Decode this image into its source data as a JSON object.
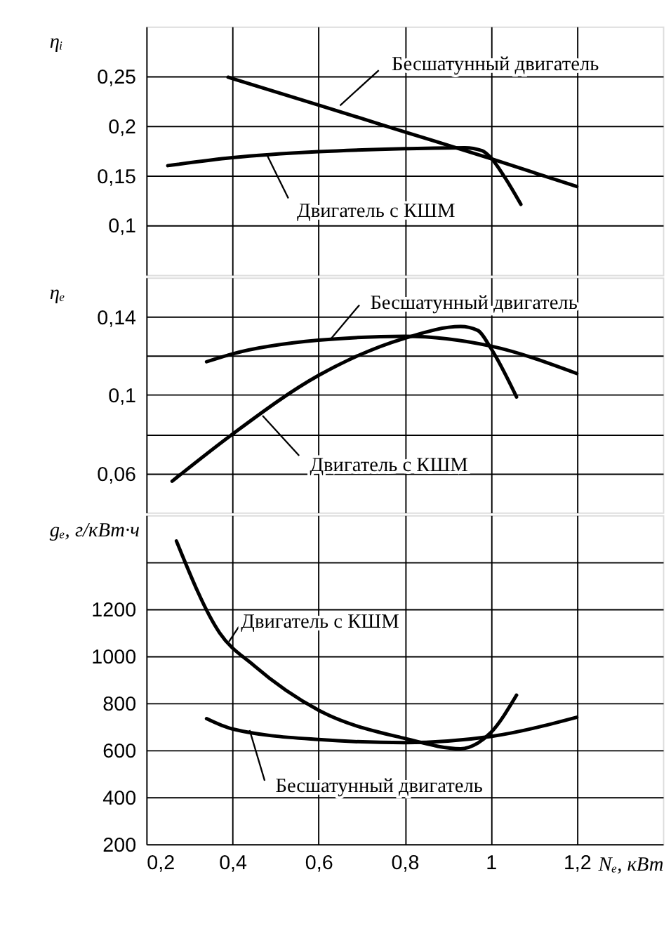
{
  "chart_data": [
    {
      "type": "line",
      "ylabel": "ηᵢ",
      "xlim": [
        0.2,
        1.4
      ],
      "xticks": [
        {
          "value": 0.2,
          "label": null
        },
        {
          "value": 0.4,
          "label": null
        },
        {
          "value": 0.6,
          "label": null
        },
        {
          "value": 0.8,
          "label": null
        },
        {
          "value": 1.0,
          "label": null
        },
        {
          "value": 1.2,
          "label": null
        }
      ],
      "ylim": [
        0.05,
        0.3
      ],
      "yticks": [
        {
          "value": 0.1,
          "label": "0,1"
        },
        {
          "value": 0.15,
          "label": "0,15"
        },
        {
          "value": 0.2,
          "label": "0,2"
        },
        {
          "value": 0.25,
          "label": "0,25"
        }
      ],
      "grid": true,
      "tick_labels": "y",
      "marker": "none",
      "line_style": "solid",
      "series": [
        {
          "name": "Бесшатунный двигатель",
          "color": "#000000",
          "x": [
            0.39,
            0.6,
            0.8,
            1.0,
            1.2
          ],
          "values": [
            0.249,
            0.221,
            0.194,
            0.167,
            0.139
          ]
        },
        {
          "name": "Двигатель с КШМ",
          "color": "#000000",
          "x": [
            0.25,
            0.4,
            0.6,
            0.8,
            0.94,
            0.98,
            1.0,
            1.03,
            1.07
          ],
          "values": [
            0.16,
            0.168,
            0.174,
            0.177,
            0.178,
            0.175,
            0.168,
            0.15,
            0.121
          ]
        }
      ]
    },
    {
      "type": "line",
      "ylabel": "ηₑ",
      "xlim": [
        0.2,
        1.4
      ],
      "xticks": [
        {
          "value": 0.2,
          "label": null
        },
        {
          "value": 0.4,
          "label": null
        },
        {
          "value": 0.6,
          "label": null
        },
        {
          "value": 0.8,
          "label": null
        },
        {
          "value": 1.0,
          "label": null
        },
        {
          "value": 1.2,
          "label": null
        }
      ],
      "ylim": [
        0.04,
        0.16
      ],
      "yticks": [
        {
          "value": 0.06,
          "label": "0,06"
        },
        {
          "value": 0.08,
          "label": null
        },
        {
          "value": 0.1,
          "label": "0,1"
        },
        {
          "value": 0.12,
          "label": null
        },
        {
          "value": 0.14,
          "label": "0,14"
        }
      ],
      "grid": true,
      "tick_labels": "y",
      "marker": "none",
      "line_style": "solid",
      "series": [
        {
          "name": "Бесшатунный двигатель",
          "color": "#000000",
          "x": [
            0.34,
            0.4,
            0.6,
            0.8,
            1.0,
            1.2
          ],
          "values": [
            0.117,
            0.121,
            0.128,
            0.13,
            0.125,
            0.111
          ]
        },
        {
          "name": "Двигатель с КШМ",
          "color": "#000000",
          "x": [
            0.26,
            0.4,
            0.6,
            0.8,
            0.93,
            0.97,
            1.0,
            1.06
          ],
          "values": [
            0.056,
            0.08,
            0.11,
            0.129,
            0.135,
            0.133,
            0.124,
            0.099
          ]
        }
      ]
    },
    {
      "type": "line",
      "ylabel": "gₑ, г/кВт·ч",
      "xlabel": "Nₑ, кВт",
      "xlim": [
        0.2,
        1.4
      ],
      "xticks": [
        {
          "value": 0.2,
          "label": "0,2"
        },
        {
          "value": 0.4,
          "label": "0,4"
        },
        {
          "value": 0.6,
          "label": "0,6"
        },
        {
          "value": 0.8,
          "label": "0,8"
        },
        {
          "value": 1.0,
          "label": "1"
        },
        {
          "value": 1.2,
          "label": "1,2"
        }
      ],
      "ylim": [
        200,
        1600
      ],
      "yticks": [
        200,
        400,
        600,
        800,
        1000,
        1200,
        {
          "value": 1400,
          "label": null
        }
      ],
      "grid": true,
      "marker": "none",
      "line_style": "solid",
      "series": [
        {
          "name": "Двигатель с КШМ",
          "color": "#000000",
          "x": [
            0.27,
            0.37,
            0.45,
            0.6,
            0.8,
            0.93,
            0.97,
            1.0,
            1.06
          ],
          "values": [
            1490,
            1100,
            960,
            770,
            650,
            606,
            630,
            674,
            834
          ]
        },
        {
          "name": "Бесшатунный двигатель",
          "color": "#000000",
          "x": [
            0.34,
            0.4,
            0.6,
            0.8,
            1.0,
            1.2
          ],
          "values": [
            734,
            690,
            645,
            632,
            658,
            740
          ]
        }
      ]
    }
  ]
}
